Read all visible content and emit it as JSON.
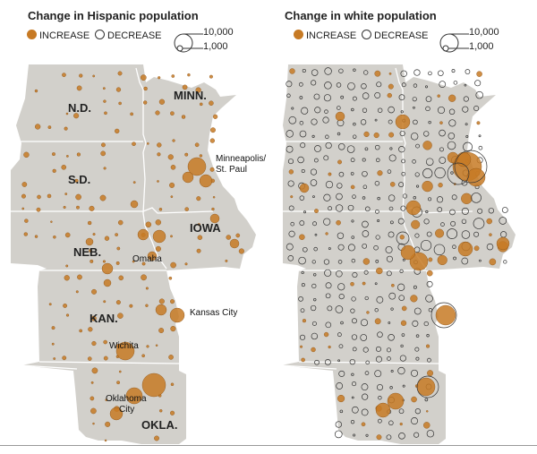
{
  "left_panel": {
    "title": "Change in Hispanic population",
    "legend": {
      "increase": "INCREASE",
      "decrease": "DECREASE",
      "size_large": "10,000",
      "size_small": "1,000"
    },
    "states": [
      "N.D.",
      "MINN.",
      "S.D.",
      "NEB.",
      "IOWA",
      "KAN.",
      "OKLA."
    ],
    "cities": [
      "Minneapolis/",
      "St. Paul",
      "Omaha",
      "Kansas City",
      "Wichita",
      "Oklahoma",
      "City"
    ]
  },
  "right_panel": {
    "title": "Change in white population",
    "legend": {
      "increase": "INCREASE",
      "decrease": "DECREASE",
      "size_large": "10,000",
      "size_small": "1,000"
    }
  },
  "colors": {
    "land": "#d2d0cb",
    "border": "#ffffff",
    "increase": "#c77a24",
    "decrease": "#333333"
  }
}
